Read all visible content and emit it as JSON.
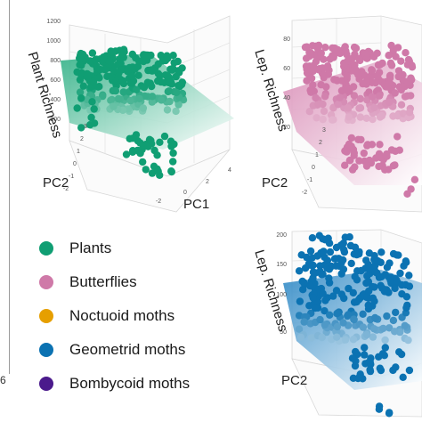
{
  "colors": {
    "plants": "#109E73",
    "butterflies": "#CF79A8",
    "noctuoid": "#E69F00",
    "geometrid": "#0B72B2",
    "bombycoid": "#4B1A8C"
  },
  "left_panel": {
    "x_tick_label": "6"
  },
  "legend": [
    {
      "label": "Plants",
      "color": "#109E73"
    },
    {
      "label": "Butterflies",
      "color": "#CF79A8"
    },
    {
      "label": "Noctuoid moths",
      "color": "#E69F00"
    },
    {
      "label": "Geometrid moths",
      "color": "#0B72B2"
    },
    {
      "label": "Bombycoid moths",
      "color": "#4B1A8C"
    }
  ],
  "chart_data": [
    {
      "type": "scatter",
      "subtype": "3d-scatter-with-regression-plane",
      "series": [
        {
          "name": "Plants",
          "color": "#109E73"
        }
      ],
      "zlabel": "Plant Richness",
      "z_ticks": [
        "200",
        "400",
        "600",
        "800",
        "1000",
        "1200"
      ],
      "xlabel": "PC1",
      "ylabel": "PC2",
      "pc1_ticks": [
        "-2",
        "0",
        "2",
        "4"
      ],
      "pc2_ticks": [
        "-2",
        "-1",
        "0",
        "1",
        "2",
        "3"
      ],
      "zlim": [
        0,
        1300
      ],
      "grid": true
    },
    {
      "type": "scatter",
      "subtype": "3d-scatter-with-regression-plane",
      "series": [
        {
          "name": "Butterflies",
          "color": "#CF79A8"
        }
      ],
      "zlabel": "Lep. Richness",
      "z_ticks": [
        "20",
        "40",
        "60",
        "80"
      ],
      "ylabel": "PC2",
      "pc2_ticks": [
        "-2",
        "-1",
        "0",
        "1",
        "2",
        "3"
      ],
      "zlim": [
        0,
        90
      ],
      "grid": true
    },
    {
      "type": "scatter",
      "subtype": "3d-scatter-with-regression-plane",
      "series": [
        {
          "name": "Geometrid moths",
          "color": "#0B72B2"
        }
      ],
      "zlabel": "Lep. Richness",
      "z_ticks": [
        "50",
        "100",
        "150",
        "200"
      ],
      "ylabel": "PC2",
      "grid": true
    }
  ]
}
